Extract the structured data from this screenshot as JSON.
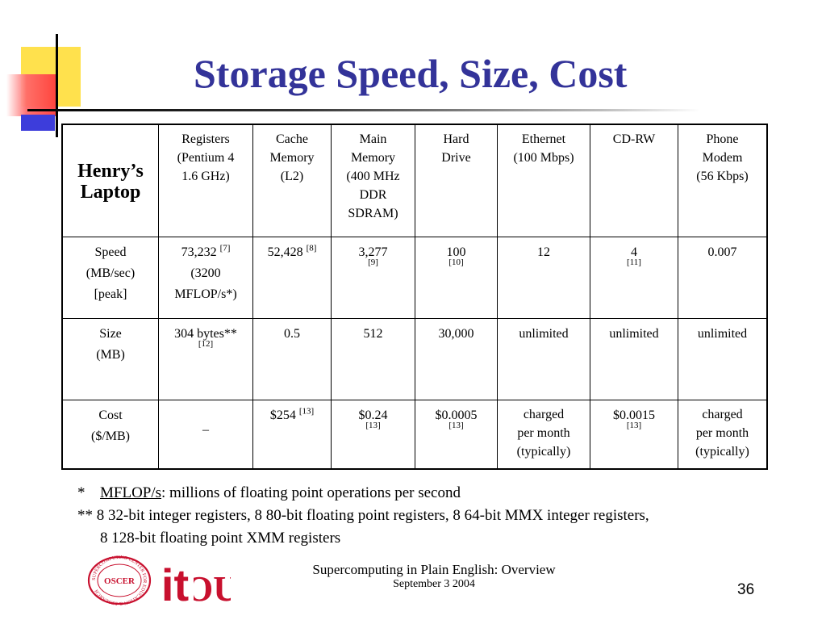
{
  "title": "Storage Speed, Size, Cost",
  "table": {
    "corner": "Henry’s Laptop",
    "columns": [
      {
        "lines": [
          "Registers",
          "(Pentium 4",
          "1.6 GHz)"
        ]
      },
      {
        "lines": [
          "Cache",
          "Memory",
          "(L2)"
        ]
      },
      {
        "lines": [
          "Main",
          "Memory",
          "(400 MHz",
          "DDR",
          "SDRAM)"
        ]
      },
      {
        "lines": [
          "Hard",
          "Drive"
        ]
      },
      {
        "lines": [
          "Ethernet",
          "(100 Mbps)"
        ]
      },
      {
        "lines": [
          "CD-RW"
        ]
      },
      {
        "lines": [
          "Phone",
          "Modem",
          "(56 Kbps)"
        ]
      }
    ],
    "rows": [
      {
        "label": [
          "Speed",
          "(MB/sec)",
          "[peak]"
        ],
        "cells": [
          {
            "value": "73,232",
            "ref": "[7]",
            "ref_style": "super",
            "extra": [
              "(3200",
              "MFLOP/s*)"
            ]
          },
          {
            "value": "52,428",
            "ref": "[8]",
            "ref_style": "super"
          },
          {
            "value": "3,277",
            "ref": "[9]",
            "ref_style": "below"
          },
          {
            "value": "100",
            "ref": "[10]",
            "ref_style": "below"
          },
          {
            "value": "12"
          },
          {
            "value": "4",
            "ref": "[11]",
            "ref_style": "below"
          },
          {
            "value": "0.007"
          }
        ]
      },
      {
        "label": [
          "Size",
          "(MB)"
        ],
        "cells": [
          {
            "value": "304 bytes**",
            "ref": "[12]",
            "ref_style": "below"
          },
          {
            "value": "0.5"
          },
          {
            "value": "512"
          },
          {
            "value": "30,000"
          },
          {
            "value": "unlimited"
          },
          {
            "value": "unlimited"
          },
          {
            "value": "unlimited"
          }
        ]
      },
      {
        "label": [
          "Cost",
          "($/MB)"
        ],
        "cells": [
          {
            "value": "–",
            "dash": true
          },
          {
            "value": "$254",
            "ref": "[13]",
            "ref_style": "super"
          },
          {
            "value": "$0.24",
            "ref": "[13]",
            "ref_style": "below"
          },
          {
            "value": "$0.0005",
            "ref": "[13]",
            "ref_style": "below"
          },
          {
            "lines": [
              "charged",
              "per month",
              "(typically)"
            ]
          },
          {
            "value": "$0.0015",
            "ref": "[13]",
            "ref_style": "below"
          },
          {
            "lines": [
              "charged",
              "per month",
              "(typically)"
            ]
          }
        ]
      }
    ]
  },
  "notes": {
    "n1_mark": "*",
    "n1_term": "MFLOP/s",
    "n1_text": ": millions of floating point operations per second",
    "n2_mark": "**",
    "n2_text": " 8 32-bit integer registers, 8 80-bit floating point registers, 8 64-bit MMX integer registers,",
    "n2_cont": "8 128-bit floating point XMM registers"
  },
  "logos": {
    "seal_text": "SUPERCOMPUTING CENTER FOR EDUCATION & RESEARCH",
    "seal_center": "OSCER",
    "it_text": "it",
    "ou_text": "OU"
  },
  "footer": {
    "line1": "Supercomputing in Plain English: Overview",
    "line2": "September 3 2004",
    "page": "36"
  },
  "colors": {
    "title": "#333399",
    "yellow": "#ffe14d",
    "red": "#ff3c3c",
    "blue": "#3d3ddb",
    "logo_red": "#c8102e"
  }
}
